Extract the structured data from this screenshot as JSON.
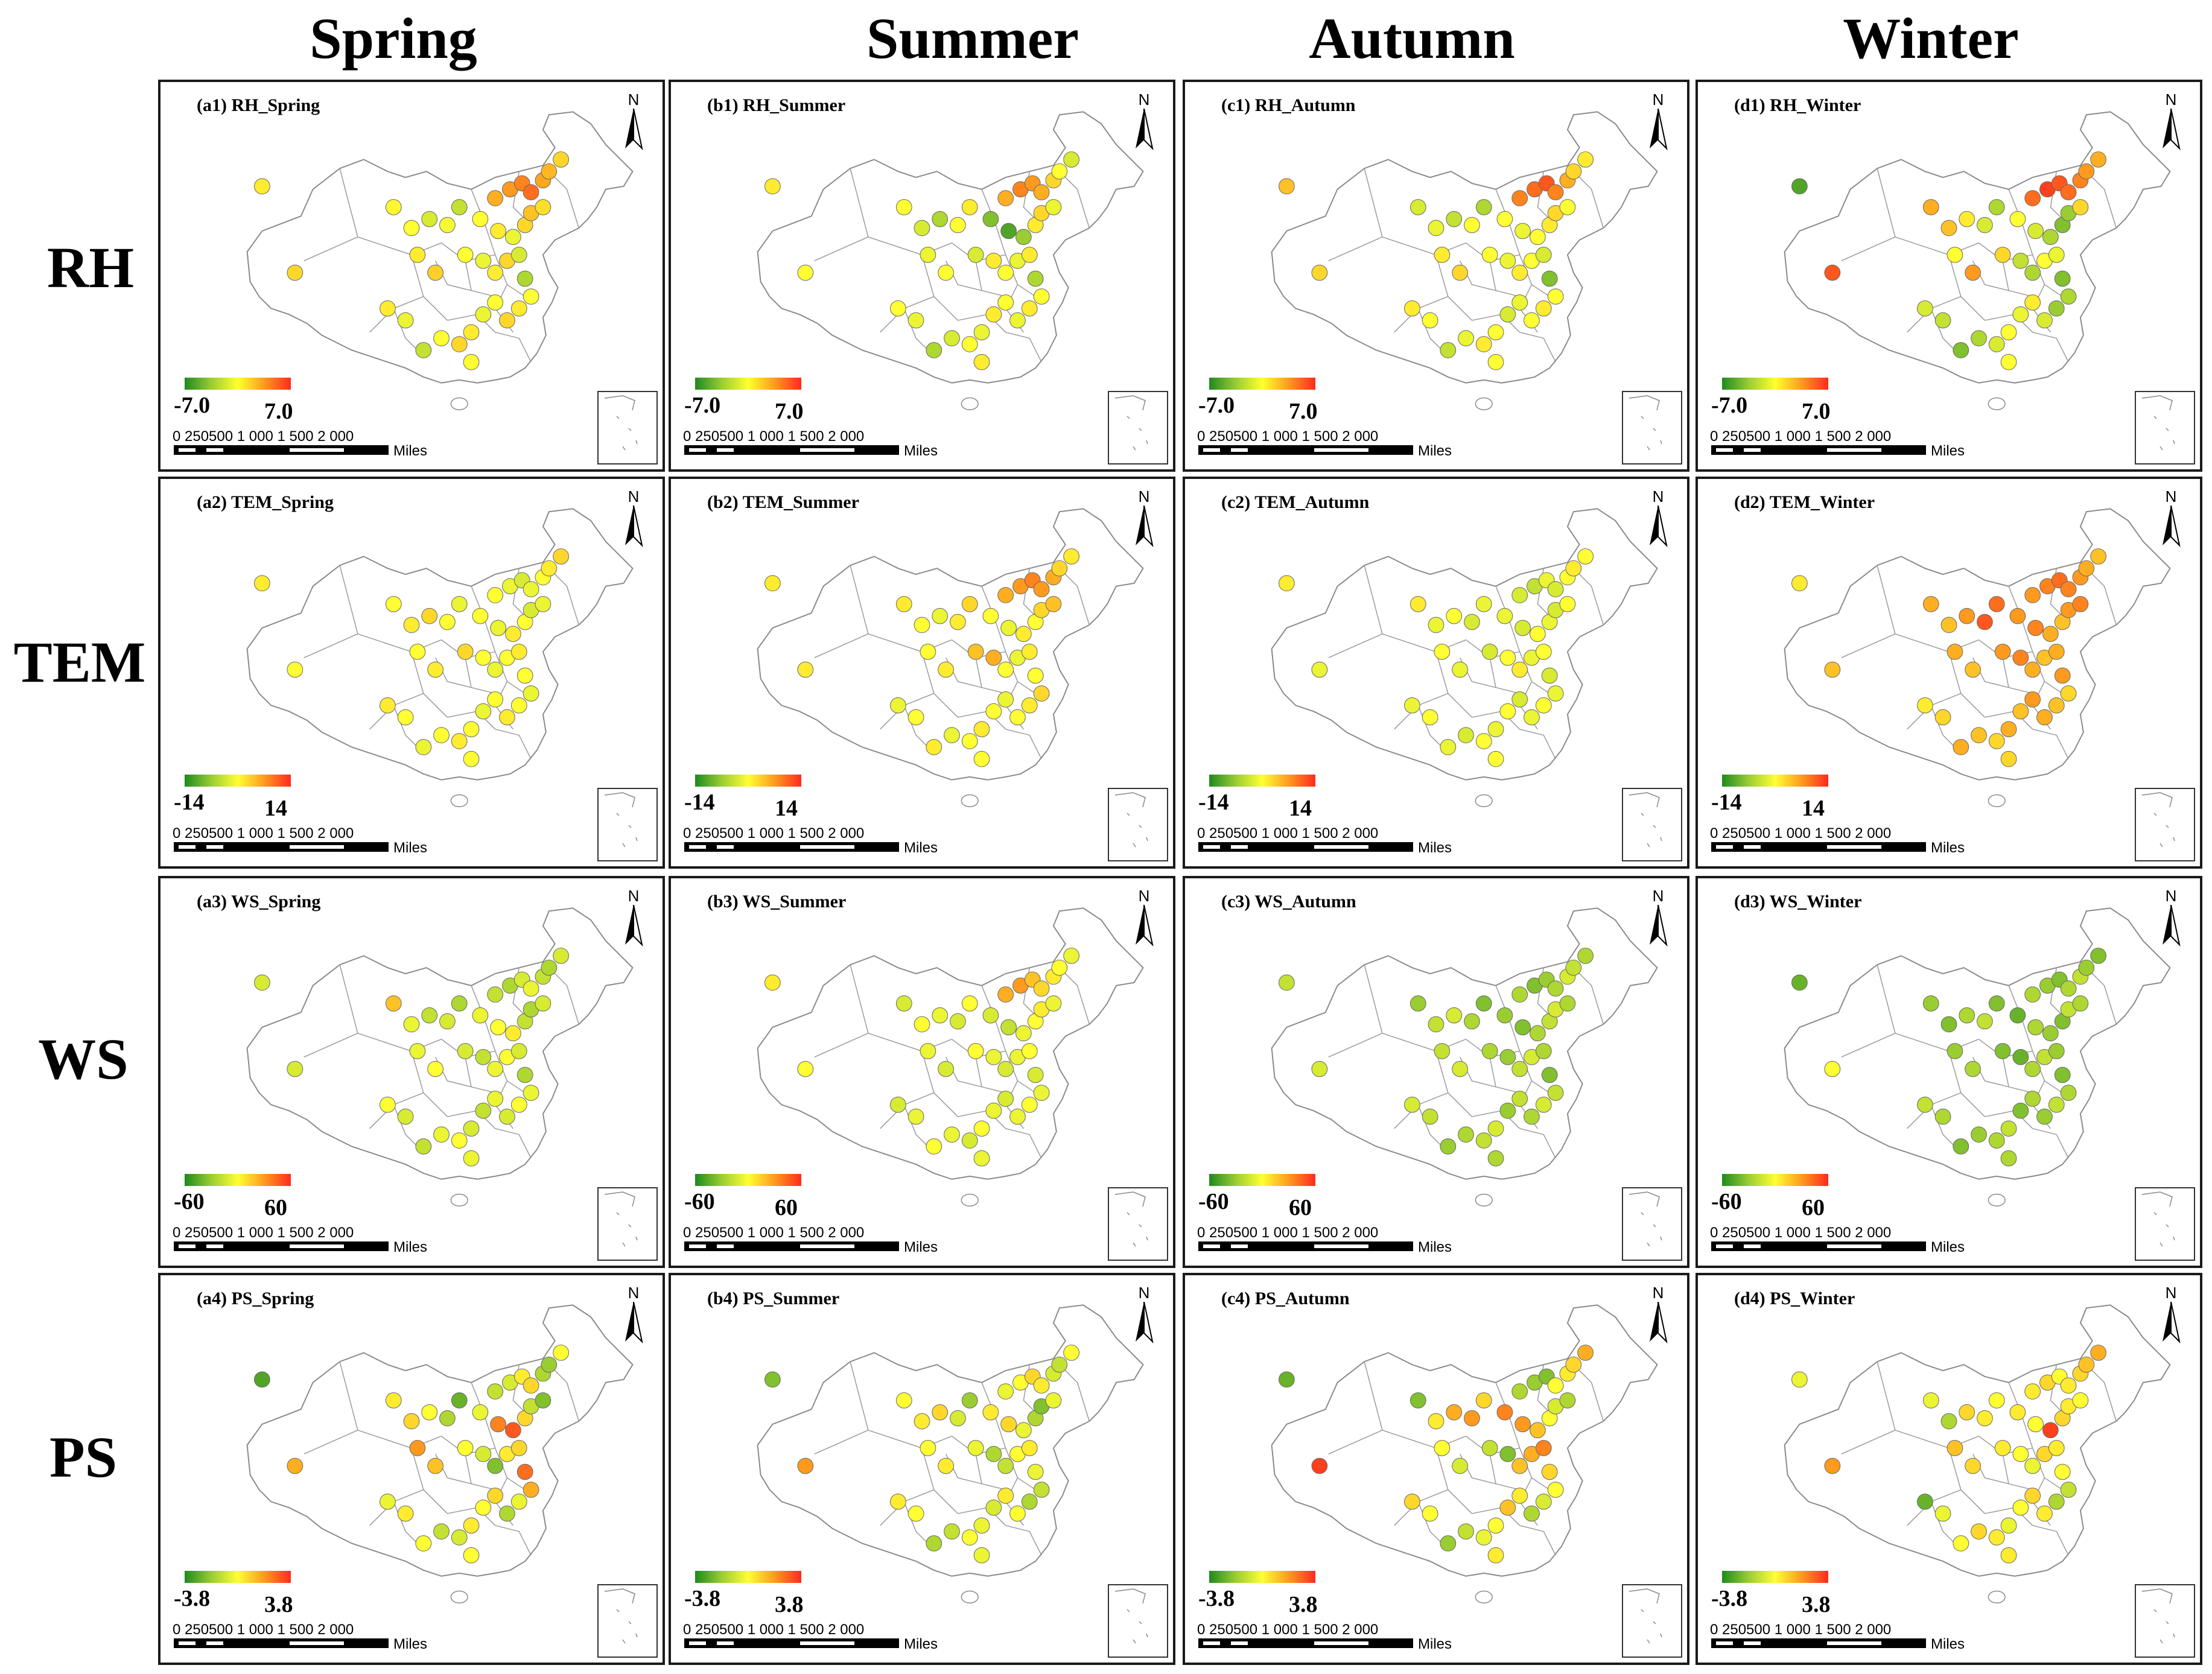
{
  "columns": [
    "Spring",
    "Summer",
    "Autumn",
    "Winter"
  ],
  "rows": [
    {
      "label": "RH",
      "legend_min": "-7.0",
      "legend_max": "7.0"
    },
    {
      "label": "TEM",
      "legend_min": "-14",
      "legend_max": "14"
    },
    {
      "label": "WS",
      "legend_min": "-60",
      "legend_max": "60"
    },
    {
      "label": "PS",
      "legend_min": "-3.8",
      "legend_max": "3.8"
    }
  ],
  "panel_titles": [
    [
      "(a1) RH_Spring",
      "(b1) RH_Summer",
      "(c1) RH_Autumn",
      "(d1) RH_Winter"
    ],
    [
      "(a2) TEM_Spring",
      "(b2) TEM_Summer",
      "(c2) TEM_Autumn",
      "(d2) TEM_Winter"
    ],
    [
      "(a3) WS_Spring",
      "(b3) WS_Summer",
      "(c3) WS_Autumn",
      "(d3) WS_Winter"
    ],
    [
      "(a4) PS_Spring",
      "(b4) PS_Summer",
      "(c4) PS_Autumn",
      "(d4) PS_Winter"
    ]
  ],
  "north_label": "N",
  "scale": {
    "labels": "0  250500     1 000   1 500   2 000",
    "unit": "Miles"
  },
  "legend_colors": [
    "#1e8a1e",
    "#9acd32",
    "#ffff33",
    "#ff9a1e",
    "#ff2a1e"
  ],
  "map_data": {
    "value_scale": "0 = strongest negative (green), 0.5 = neutral (yellow), 1 = strongest positive (red)",
    "station_values": [
      [
        [
          0.55,
          0.7,
          0.75,
          0.8,
          0.85,
          0.72,
          0.68,
          0.6,
          0.5,
          0.55,
          0.45,
          0.6,
          0.65,
          0.58,
          0.52,
          0.5,
          0.4,
          0.48,
          0.35,
          0.55,
          0.62,
          0.5,
          0.45,
          0.55,
          0.6,
          0.4,
          0.3,
          0.5,
          0.55,
          0.6,
          0.5,
          0.45,
          0.55,
          0.6,
          0.5,
          0.35,
          0.45,
          0.55,
          0.5,
          0.6
        ],
        [
          0.55,
          0.7,
          0.8,
          0.75,
          0.7,
          0.6,
          0.5,
          0.4,
          0.2,
          0.1,
          0.25,
          0.55,
          0.6,
          0.45,
          0.5,
          0.4,
          0.3,
          0.5,
          0.55,
          0.45,
          0.5,
          0.4,
          0.55,
          0.5,
          0.45,
          0.55,
          0.3,
          0.5,
          0.55,
          0.45,
          0.5,
          0.55,
          0.45,
          0.5,
          0.4,
          0.3,
          0.45,
          0.5,
          0.55,
          0.5
        ],
        [
          0.65,
          0.8,
          0.85,
          0.9,
          0.8,
          0.7,
          0.6,
          0.55,
          0.5,
          0.45,
          0.5,
          0.55,
          0.6,
          0.5,
          0.4,
          0.45,
          0.35,
          0.5,
          0.3,
          0.55,
          0.6,
          0.5,
          0.45,
          0.55,
          0.5,
          0.4,
          0.2,
          0.5,
          0.55,
          0.5,
          0.45,
          0.4,
          0.5,
          0.55,
          0.45,
          0.35,
          0.5,
          0.55,
          0.5,
          0.6
        ],
        [
          0.1,
          0.85,
          0.95,
          0.9,
          0.85,
          0.8,
          0.75,
          0.7,
          0.5,
          0.4,
          0.3,
          0.2,
          0.25,
          0.6,
          0.7,
          0.65,
          0.55,
          0.4,
          0.3,
          0.5,
          0.75,
          0.6,
          0.35,
          0.3,
          0.5,
          0.45,
          0.2,
          0.3,
          0.25,
          0.4,
          0.55,
          0.45,
          0.5,
          0.4,
          0.3,
          0.2,
          0.35,
          0.4,
          0.5,
          0.9
        ]
      ],
      [
        [
          0.55,
          0.5,
          0.45,
          0.4,
          0.45,
          0.5,
          0.55,
          0.6,
          0.5,
          0.45,
          0.55,
          0.5,
          0.4,
          0.45,
          0.5,
          0.55,
          0.6,
          0.5,
          0.45,
          0.5,
          0.55,
          0.6,
          0.5,
          0.45,
          0.5,
          0.55,
          0.5,
          0.45,
          0.5,
          0.55,
          0.5,
          0.45,
          0.5,
          0.55,
          0.5,
          0.45,
          0.5,
          0.55,
          0.5,
          0.5
        ],
        [
          0.55,
          0.7,
          0.75,
          0.8,
          0.75,
          0.7,
          0.6,
          0.55,
          0.5,
          0.45,
          0.55,
          0.5,
          0.6,
          0.65,
          0.55,
          0.5,
          0.45,
          0.55,
          0.6,
          0.5,
          0.55,
          0.65,
          0.7,
          0.5,
          0.45,
          0.55,
          0.5,
          0.6,
          0.55,
          0.5,
          0.45,
          0.5,
          0.55,
          0.5,
          0.45,
          0.55,
          0.5,
          0.45,
          0.5,
          0.55
        ],
        [
          0.55,
          0.4,
          0.35,
          0.45,
          0.4,
          0.5,
          0.55,
          0.5,
          0.45,
          0.4,
          0.5,
          0.45,
          0.4,
          0.5,
          0.55,
          0.45,
          0.5,
          0.4,
          0.45,
          0.5,
          0.45,
          0.4,
          0.5,
          0.55,
          0.45,
          0.5,
          0.4,
          0.45,
          0.5,
          0.45,
          0.4,
          0.5,
          0.45,
          0.5,
          0.4,
          0.45,
          0.5,
          0.45,
          0.5,
          0.45
        ],
        [
          0.55,
          0.75,
          0.8,
          0.85,
          0.8,
          0.75,
          0.7,
          0.65,
          0.75,
          0.8,
          0.7,
          0.65,
          0.75,
          0.8,
          0.7,
          0.65,
          0.75,
          0.9,
          0.85,
          0.7,
          0.65,
          0.75,
          0.8,
          0.7,
          0.65,
          0.7,
          0.75,
          0.6,
          0.65,
          0.7,
          0.75,
          0.65,
          0.7,
          0.6,
          0.65,
          0.7,
          0.6,
          0.55,
          0.6,
          0.65
        ]
      ],
      [
        [
          0.4,
          0.35,
          0.3,
          0.4,
          0.45,
          0.35,
          0.3,
          0.4,
          0.45,
          0.5,
          0.55,
          0.35,
          0.3,
          0.4,
          0.65,
          0.45,
          0.35,
          0.4,
          0.3,
          0.45,
          0.5,
          0.4,
          0.35,
          0.45,
          0.5,
          0.4,
          0.3,
          0.45,
          0.5,
          0.4,
          0.45,
          0.35,
          0.4,
          0.5,
          0.45,
          0.35,
          0.4,
          0.5,
          0.45,
          0.4
        ],
        [
          0.55,
          0.7,
          0.75,
          0.65,
          0.6,
          0.55,
          0.5,
          0.45,
          0.4,
          0.35,
          0.45,
          0.5,
          0.55,
          0.45,
          0.4,
          0.5,
          0.45,
          0.4,
          0.5,
          0.45,
          0.4,
          0.5,
          0.45,
          0.4,
          0.45,
          0.5,
          0.4,
          0.45,
          0.5,
          0.45,
          0.4,
          0.45,
          0.5,
          0.4,
          0.45,
          0.5,
          0.45,
          0.4,
          0.45,
          0.5
        ],
        [
          0.35,
          0.3,
          0.2,
          0.25,
          0.3,
          0.4,
          0.35,
          0.3,
          0.25,
          0.2,
          0.3,
          0.35,
          0.4,
          0.3,
          0.25,
          0.35,
          0.4,
          0.3,
          0.2,
          0.35,
          0.4,
          0.3,
          0.25,
          0.35,
          0.4,
          0.3,
          0.2,
          0.35,
          0.4,
          0.3,
          0.35,
          0.25,
          0.4,
          0.35,
          0.3,
          0.25,
          0.35,
          0.4,
          0.3,
          0.4
        ],
        [
          0.15,
          0.3,
          0.25,
          0.2,
          0.3,
          0.35,
          0.25,
          0.2,
          0.15,
          0.3,
          0.25,
          0.2,
          0.35,
          0.3,
          0.25,
          0.2,
          0.3,
          0.35,
          0.2,
          0.25,
          0.3,
          0.2,
          0.15,
          0.3,
          0.35,
          0.25,
          0.2,
          0.3,
          0.35,
          0.25,
          0.3,
          0.2,
          0.35,
          0.3,
          0.25,
          0.2,
          0.3,
          0.35,
          0.3,
          0.5
        ]
      ],
      [
        [
          0.1,
          0.35,
          0.4,
          0.55,
          0.6,
          0.3,
          0.25,
          0.5,
          0.45,
          0.8,
          0.9,
          0.6,
          0.35,
          0.2,
          0.55,
          0.6,
          0.5,
          0.3,
          0.15,
          0.75,
          0.65,
          0.5,
          0.4,
          0.2,
          0.55,
          0.6,
          0.85,
          0.7,
          0.45,
          0.3,
          0.6,
          0.5,
          0.55,
          0.4,
          0.35,
          0.5,
          0.55,
          0.45,
          0.5,
          0.7
        ],
        [
          0.2,
          0.45,
          0.5,
          0.6,
          0.55,
          0.4,
          0.35,
          0.5,
          0.55,
          0.6,
          0.45,
          0.3,
          0.2,
          0.45,
          0.5,
          0.55,
          0.6,
          0.4,
          0.25,
          0.5,
          0.55,
          0.45,
          0.3,
          0.35,
          0.5,
          0.55,
          0.45,
          0.35,
          0.3,
          0.5,
          0.55,
          0.4,
          0.45,
          0.5,
          0.35,
          0.3,
          0.5,
          0.55,
          0.45,
          0.75
        ],
        [
          0.15,
          0.3,
          0.25,
          0.2,
          0.5,
          0.55,
          0.6,
          0.7,
          0.8,
          0.75,
          0.65,
          0.5,
          0.4,
          0.3,
          0.2,
          0.55,
          0.7,
          0.75,
          0.6,
          0.5,
          0.4,
          0.35,
          0.2,
          0.65,
          0.7,
          0.8,
          0.6,
          0.5,
          0.4,
          0.3,
          0.55,
          0.65,
          0.5,
          0.45,
          0.35,
          0.25,
          0.5,
          0.6,
          0.55,
          0.95
        ],
        [
          0.45,
          0.55,
          0.6,
          0.5,
          0.55,
          0.6,
          0.65,
          0.7,
          0.55,
          0.5,
          0.95,
          0.6,
          0.55,
          0.5,
          0.45,
          0.3,
          0.6,
          0.55,
          0.5,
          0.65,
          0.6,
          0.55,
          0.5,
          0.45,
          0.6,
          0.55,
          0.5,
          0.35,
          0.3,
          0.55,
          0.6,
          0.5,
          0.45,
          0.55,
          0.6,
          0.5,
          0.45,
          0.15,
          0.55,
          0.75
        ]
      ]
    ]
  }
}
